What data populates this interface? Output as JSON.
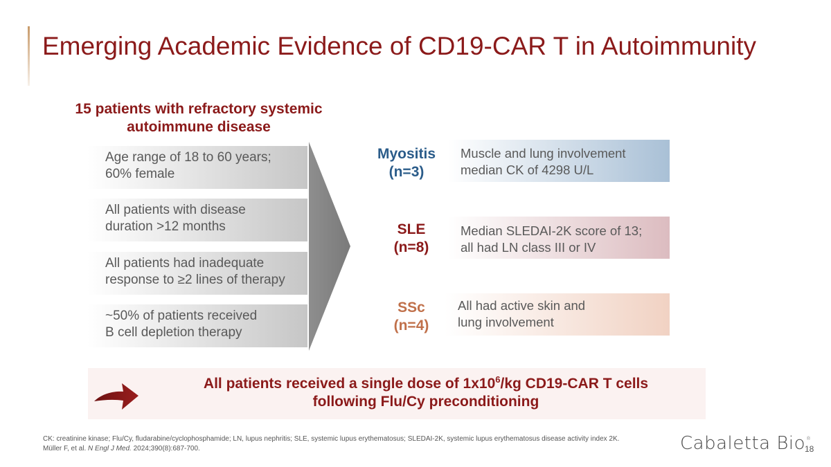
{
  "slide": {
    "title": "Emerging Academic Evidence of CD19-CAR T in Autoimmunity",
    "cohort_heading_line1": "15 patients with refractory systemic",
    "cohort_heading_line2": "autoimmune disease",
    "criteria": [
      {
        "line1": "Age range of 18 to 60 years;",
        "line2": "60% female"
      },
      {
        "line1": "All patients with disease",
        "line2": "duration >12 months"
      },
      {
        "line1": "All patients had inadequate",
        "line2": "response to ≥2 lines of therapy"
      },
      {
        "line1": "~50% of patients received",
        "line2": "B cell depletion therapy"
      }
    ],
    "diseases": [
      {
        "name": "Myositis",
        "count": "(n=3)",
        "line1": "Muscle and lung involvement",
        "line2": "median CK of 4298 U/L",
        "color": "#2b5c8a",
        "box_color": "#a9c0d6"
      },
      {
        "name": "SLE",
        "count": "(n=8)",
        "line1": "Median SLEDAI-2K score of 13;",
        "line2": "all had LN class III or IV",
        "color": "#8b1a1a",
        "box_color": "#dcbcc0"
      },
      {
        "name": "SSc",
        "count": "(n=4)",
        "line1": "All had active skin and",
        "line2": "lung involvement",
        "color": "#c0704a",
        "box_color": "#f1d2c3"
      }
    ],
    "summary": {
      "part1": "All patients received a single dose of 1x10",
      "superscript": "6",
      "part2": "/kg CD19-CAR T cells",
      "line2": "following Flu/Cy preconditioning"
    },
    "footnote": "CK: creatinine kinase; Flu/Cy, fludarabine/cyclophosphamide; LN, lupus nephritis; SLE, systemic lupus erythematosus; SLEDAI-2K, systemic lupus erythematosus disease activity index 2K.",
    "reference": {
      "authors": "Müller F, et al. ",
      "journal": "N Engl J Med.",
      "citation": " 2024;390(8):687-700."
    },
    "logo": {
      "text": "Cabaletta Bio",
      "mark": "®"
    },
    "page_number": "18"
  }
}
